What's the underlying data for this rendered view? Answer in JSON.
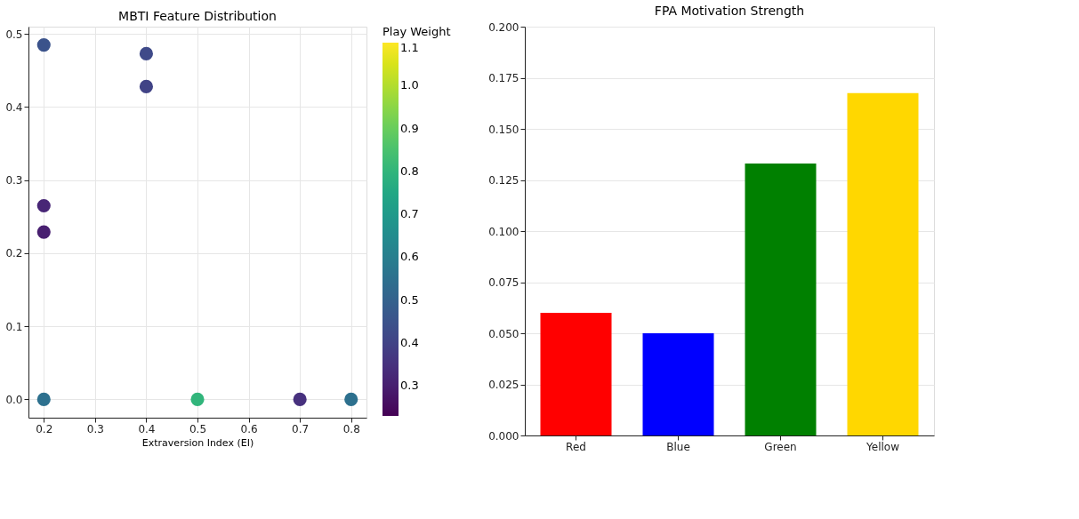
{
  "chart_data": [
    {
      "type": "scatter",
      "title": "MBTI Feature Distribution",
      "xlabel": "Extraversion Index (EI)",
      "clabel": "Play Weight",
      "x": [
        0.2,
        0.4,
        0.4,
        0.2,
        0.2,
        0.2,
        0.5,
        0.7,
        0.8
      ],
      "values": [
        0.485,
        0.473,
        0.428,
        0.265,
        0.229,
        0.0,
        0.0,
        0.0,
        0.0
      ],
      "cvalues": [
        0.45,
        0.42,
        0.4,
        0.32,
        0.3,
        0.55,
        0.8,
        0.35,
        0.55
      ],
      "clim": [
        0.23,
        1.1
      ],
      "cticks": [
        0.3,
        0.4,
        0.5,
        0.6,
        0.7,
        0.8,
        0.9,
        {
          "value": 1.0,
          "label": "1.0"
        },
        1.1
      ],
      "xlim": [
        0.17,
        0.83
      ],
      "xticks": [
        0.2,
        0.3,
        0.4,
        0.5,
        0.6,
        0.7,
        0.8
      ],
      "ylim": [
        -0.025,
        0.51
      ],
      "yticks": [
        {
          "value": 0,
          "label": "0.0"
        },
        0.1,
        0.2,
        0.3,
        0.4,
        0.5
      ],
      "grid": true,
      "marker": "circle"
    },
    {
      "type": "bar",
      "title": "FPA Motivation Strength",
      "categories": [
        "Red",
        "Blue",
        "Green",
        "Yellow"
      ],
      "values": [
        0.06,
        0.05,
        0.133,
        0.1675
      ],
      "colors": [
        "#ff0000",
        "#0000ff",
        "#008000",
        "#ffd700"
      ],
      "ylim": [
        0,
        0.2
      ],
      "yticks": [
        {
          "value": 0,
          "label": "0.000"
        },
        0.025,
        {
          "value": 0.05,
          "label": "0.050"
        },
        0.075,
        {
          "value": 0.1,
          "label": "0.100"
        },
        0.125,
        {
          "value": 0.15,
          "label": "0.150"
        },
        0.175,
        {
          "value": 0.2,
          "label": "0.200"
        }
      ],
      "grid": "y"
    }
  ]
}
